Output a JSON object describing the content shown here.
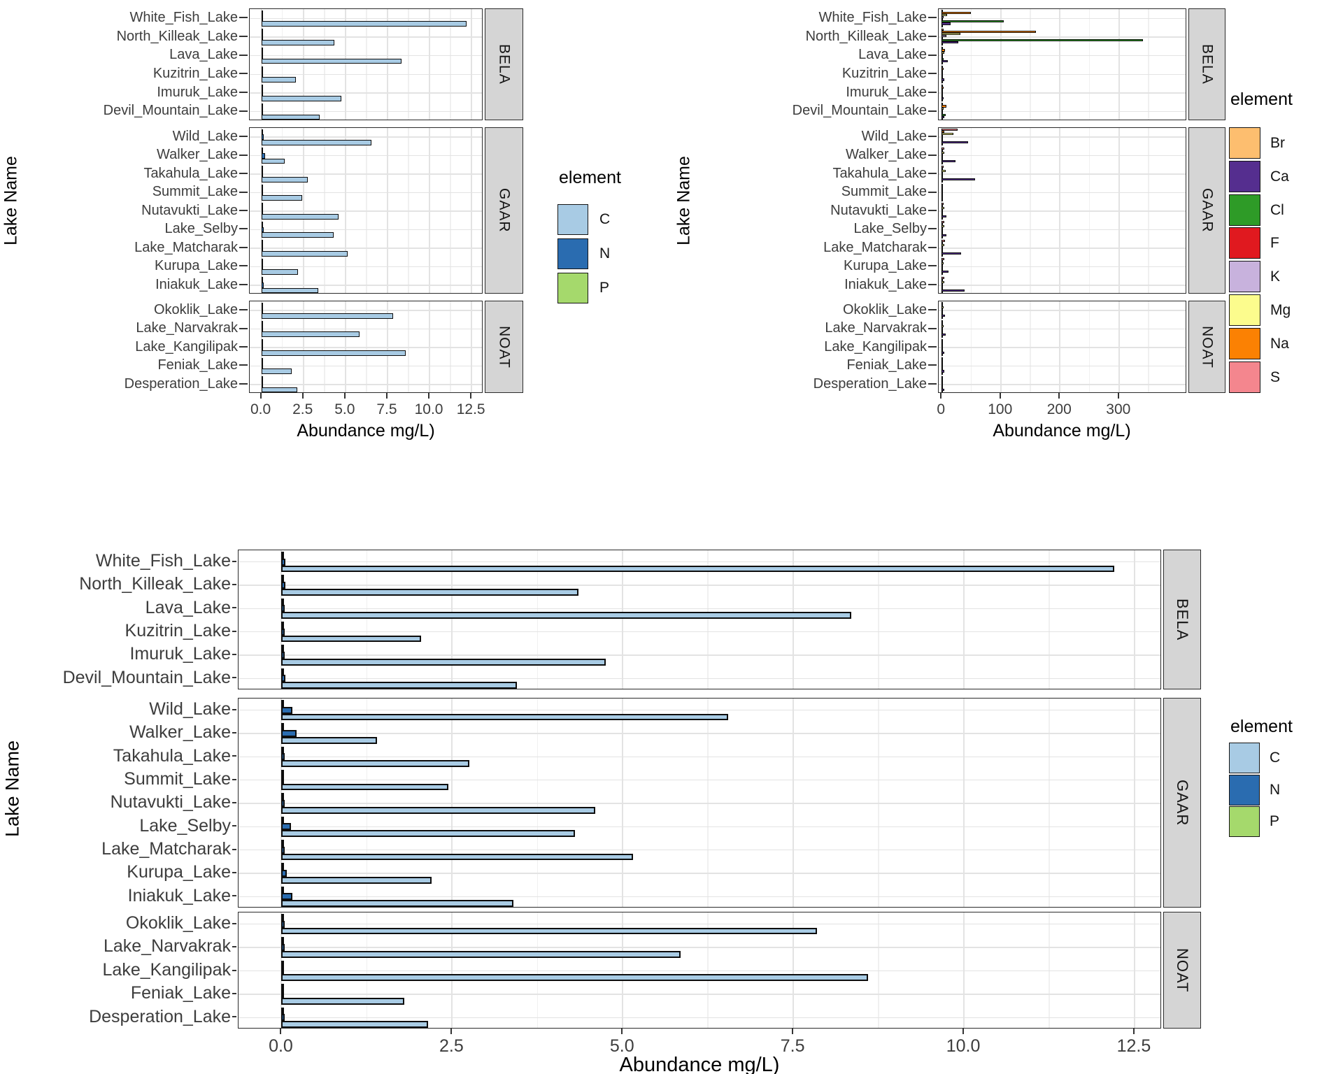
{
  "figure": {
    "background": "#FFFFFF"
  },
  "facets": [
    {
      "label": "BELA",
      "lakes": [
        "White_Fish_Lake",
        "North_Killeak_Lake",
        "Lava_Lake",
        "Kuzitrin_Lake",
        "Imuruk_Lake",
        "Devil_Mountain_Lake"
      ]
    },
    {
      "label": "GAAR",
      "lakes": [
        "Wild_Lake",
        "Walker_Lake",
        "Takahula_Lake",
        "Summit_Lake",
        "Nutavukti_Lake",
        "Lake_Selby",
        "Lake_Matcharak",
        "Kurupa_Lake",
        "Iniakuk_Lake"
      ]
    },
    {
      "label": "NOAT",
      "lakes": [
        "Okoklik_Lake",
        "Lake_Narvakrak",
        "Lake_Kangilipak",
        "Feniak_Lake",
        "Desperation_Lake"
      ]
    }
  ],
  "chart_data": [
    {
      "id": "top-left-cnp",
      "type": "bar",
      "orientation": "horizontal",
      "title": "",
      "xlabel": "Abundance mg/L)",
      "ylabel": "Lake Name",
      "facet_labels": [
        "BELA",
        "GAAR",
        "NOAT"
      ],
      "grid": true,
      "legend_position": "right",
      "domain": [
        -0.69,
        13.2
      ],
      "x_ticks": [
        {
          "value": 0,
          "label": "0.0"
        },
        {
          "value": 2.5,
          "label": "2.5"
        },
        {
          "value": 5,
          "label": "5.0"
        },
        {
          "value": 7.5,
          "label": "7.5"
        },
        {
          "value": 10,
          "label": "10.0"
        },
        {
          "value": 12.5,
          "label": "12.5"
        }
      ],
      "categories": [
        "White_Fish_Lake",
        "North_Killeak_Lake",
        "Lava_Lake",
        "Kuzitrin_Lake",
        "Imuruk_Lake",
        "Devil_Mountain_Lake",
        "Wild_Lake",
        "Walker_Lake",
        "Takahula_Lake",
        "Summit_Lake",
        "Nutavukti_Lake",
        "Lake_Selby",
        "Lake_Matcharak",
        "Kurupa_Lake",
        "Iniakuk_Lake",
        "Okoklik_Lake",
        "Lake_Narvakrak",
        "Lake_Kangilipak",
        "Feniak_Lake",
        "Desperation_Lake"
      ],
      "legend": {
        "title": "element",
        "entries": [
          {
            "label": "C",
            "color": "#A8CBE4"
          },
          {
            "label": "N",
            "color": "#2A6CB0"
          },
          {
            "label": "P",
            "color": "#A5D96C"
          }
        ]
      },
      "series": [
        {
          "name": "C",
          "values": [
            12.2,
            4.35,
            8.35,
            2.05,
            4.75,
            3.45,
            6.55,
            1.4,
            2.75,
            2.45,
            4.6,
            4.3,
            5.15,
            2.2,
            3.4,
            7.85,
            5.85,
            8.6,
            1.8,
            2.15
          ]
        },
        {
          "name": "N",
          "values": [
            0.06,
            0.06,
            0.05,
            0.05,
            0.05,
            0.06,
            0.16,
            0.22,
            0.05,
            0.04,
            0.05,
            0.14,
            0.05,
            0.08,
            0.16,
            0.05,
            0.05,
            0.04,
            0.04,
            0.05
          ]
        },
        {
          "name": "P",
          "values": [
            0.01,
            0.01,
            0.01,
            0.01,
            0.01,
            0.01,
            0.01,
            0.01,
            0.01,
            0.01,
            0.01,
            0.01,
            0.01,
            0.01,
            0.01,
            0.01,
            0.01,
            0.01,
            0.01,
            0.01
          ]
        }
      ]
    },
    {
      "id": "top-right-elements",
      "type": "bar",
      "orientation": "horizontal",
      "title": "",
      "xlabel": "Abundance mg/L)",
      "ylabel": "Lake Name",
      "facet_labels": [
        "BELA",
        "GAAR",
        "NOAT"
      ],
      "grid": true,
      "legend_position": "right",
      "domain": [
        -5,
        415
      ],
      "x_ticks": [
        {
          "value": 0,
          "label": "0"
        },
        {
          "value": 100,
          "label": "100"
        },
        {
          "value": 200,
          "label": "200"
        },
        {
          "value": 300,
          "label": "300"
        }
      ],
      "categories": [
        "White_Fish_Lake",
        "North_Killeak_Lake",
        "Lava_Lake",
        "Kuzitrin_Lake",
        "Imuruk_Lake",
        "Devil_Mountain_Lake",
        "Wild_Lake",
        "Walker_Lake",
        "Takahula_Lake",
        "Summit_Lake",
        "Nutavukti_Lake",
        "Lake_Selby",
        "Lake_Matcharak",
        "Kurupa_Lake",
        "Iniakuk_Lake",
        "Okoklik_Lake",
        "Lake_Narvakrak",
        "Lake_Kangilipak",
        "Feniak_Lake",
        "Desperation_Lake"
      ],
      "legend": {
        "title": "element",
        "entries": [
          {
            "label": "Br",
            "color": "#FDBE6F"
          },
          {
            "label": "Ca",
            "color": "#552E8F"
          },
          {
            "label": "Cl",
            "color": "#2E9B27"
          },
          {
            "label": "F",
            "color": "#E0191F"
          },
          {
            "label": "K",
            "color": "#C8B2DD"
          },
          {
            "label": "Mg",
            "color": "#FCFC8D"
          },
          {
            "label": "Na",
            "color": "#FB8103"
          },
          {
            "label": "S",
            "color": "#F4868E"
          }
        ]
      },
      "series": [
        {
          "name": "Br",
          "values": [
            0.3,
            1,
            0.2,
            0.2,
            0.2,
            0.3,
            0.2,
            0.2,
            0.2,
            0.1,
            0.2,
            0.2,
            0.2,
            0.2,
            0.2,
            0.1,
            0.1,
            0.1,
            0.1,
            0.1
          ]
        },
        {
          "name": "Ca",
          "values": [
            15,
            28,
            10,
            4,
            3,
            5,
            45,
            23,
            57,
            2.5,
            8,
            8,
            33,
            11,
            39,
            6,
            7,
            4,
            5,
            4
          ]
        },
        {
          "name": "Cl",
          "values": [
            105,
            340,
            3,
            2,
            2,
            7,
            2,
            1,
            1,
            0.5,
            1,
            1,
            1,
            1,
            1,
            1,
            1,
            1,
            1,
            0.5
          ]
        },
        {
          "name": "F",
          "values": [
            0.3,
            0.3,
            0.2,
            0.2,
            0.2,
            0.2,
            0.3,
            0.2,
            0.2,
            0.2,
            0.2,
            0.2,
            0.3,
            0.2,
            0.3,
            0.2,
            0.2,
            0.2,
            0.2,
            0.2
          ]
        },
        {
          "name": "K",
          "values": [
            3,
            8,
            1.5,
            1,
            1,
            1,
            1.5,
            1,
            1,
            0.5,
            1,
            1,
            1,
            1,
            1,
            1,
            1,
            0.5,
            0.5,
            0.5
          ]
        },
        {
          "name": "Mg",
          "values": [
            9,
            32,
            4,
            2,
            2,
            3,
            20,
            5,
            7,
            1.5,
            4,
            4,
            5,
            3,
            4,
            3,
            3,
            2,
            2,
            2
          ]
        },
        {
          "name": "Na",
          "values": [
            50,
            160,
            6,
            3,
            3,
            8,
            5,
            2,
            2,
            1,
            2,
            2,
            2,
            1.5,
            2,
            1,
            1,
            1,
            1,
            1
          ]
        },
        {
          "name": "S",
          "values": [
            2,
            3,
            1,
            0.5,
            0.5,
            2,
            27,
            4,
            3,
            2,
            3,
            5,
            6,
            4,
            5,
            2,
            2,
            1,
            2,
            1
          ]
        }
      ]
    },
    {
      "id": "bottom-cnp",
      "type": "bar",
      "orientation": "horizontal",
      "title": "",
      "xlabel": "Abundance mg/L)",
      "ylabel": "Lake Name",
      "facet_labels": [
        "BELA",
        "GAAR",
        "NOAT"
      ],
      "grid": true,
      "legend_position": "right",
      "domain": [
        -0.63,
        12.9
      ],
      "x_ticks": [
        {
          "value": 0,
          "label": "0.0"
        },
        {
          "value": 2.5,
          "label": "2.5"
        },
        {
          "value": 5,
          "label": "5.0"
        },
        {
          "value": 7.5,
          "label": "7.5"
        },
        {
          "value": 10,
          "label": "10.0"
        },
        {
          "value": 12.5,
          "label": "12.5"
        }
      ],
      "categories": [
        "White_Fish_Lake",
        "North_Killeak_Lake",
        "Lava_Lake",
        "Kuzitrin_Lake",
        "Imuruk_Lake",
        "Devil_Mountain_Lake",
        "Wild_Lake",
        "Walker_Lake",
        "Takahula_Lake",
        "Summit_Lake",
        "Nutavukti_Lake",
        "Lake_Selby",
        "Lake_Matcharak",
        "Kurupa_Lake",
        "Iniakuk_Lake",
        "Okoklik_Lake",
        "Lake_Narvakrak",
        "Lake_Kangilipak",
        "Feniak_Lake",
        "Desperation_Lake"
      ],
      "legend": {
        "title": "element",
        "entries": [
          {
            "label": "C",
            "color": "#A8CBE4"
          },
          {
            "label": "N",
            "color": "#2A6CB0"
          },
          {
            "label": "P",
            "color": "#A5D96C"
          }
        ]
      },
      "series": [
        {
          "name": "C",
          "values": [
            12.2,
            4.35,
            8.35,
            2.05,
            4.75,
            3.45,
            6.55,
            1.4,
            2.75,
            2.45,
            4.6,
            4.3,
            5.15,
            2.2,
            3.4,
            7.85,
            5.85,
            8.6,
            1.8,
            2.15
          ]
        },
        {
          "name": "N",
          "values": [
            0.06,
            0.06,
            0.05,
            0.05,
            0.05,
            0.06,
            0.16,
            0.22,
            0.05,
            0.04,
            0.05,
            0.14,
            0.05,
            0.08,
            0.16,
            0.05,
            0.05,
            0.04,
            0.04,
            0.05
          ]
        },
        {
          "name": "P",
          "values": [
            0.01,
            0.01,
            0.01,
            0.01,
            0.01,
            0.01,
            0.01,
            0.01,
            0.01,
            0.01,
            0.01,
            0.01,
            0.01,
            0.01,
            0.01,
            0.01,
            0.01,
            0.01,
            0.01,
            0.01
          ]
        }
      ]
    }
  ]
}
